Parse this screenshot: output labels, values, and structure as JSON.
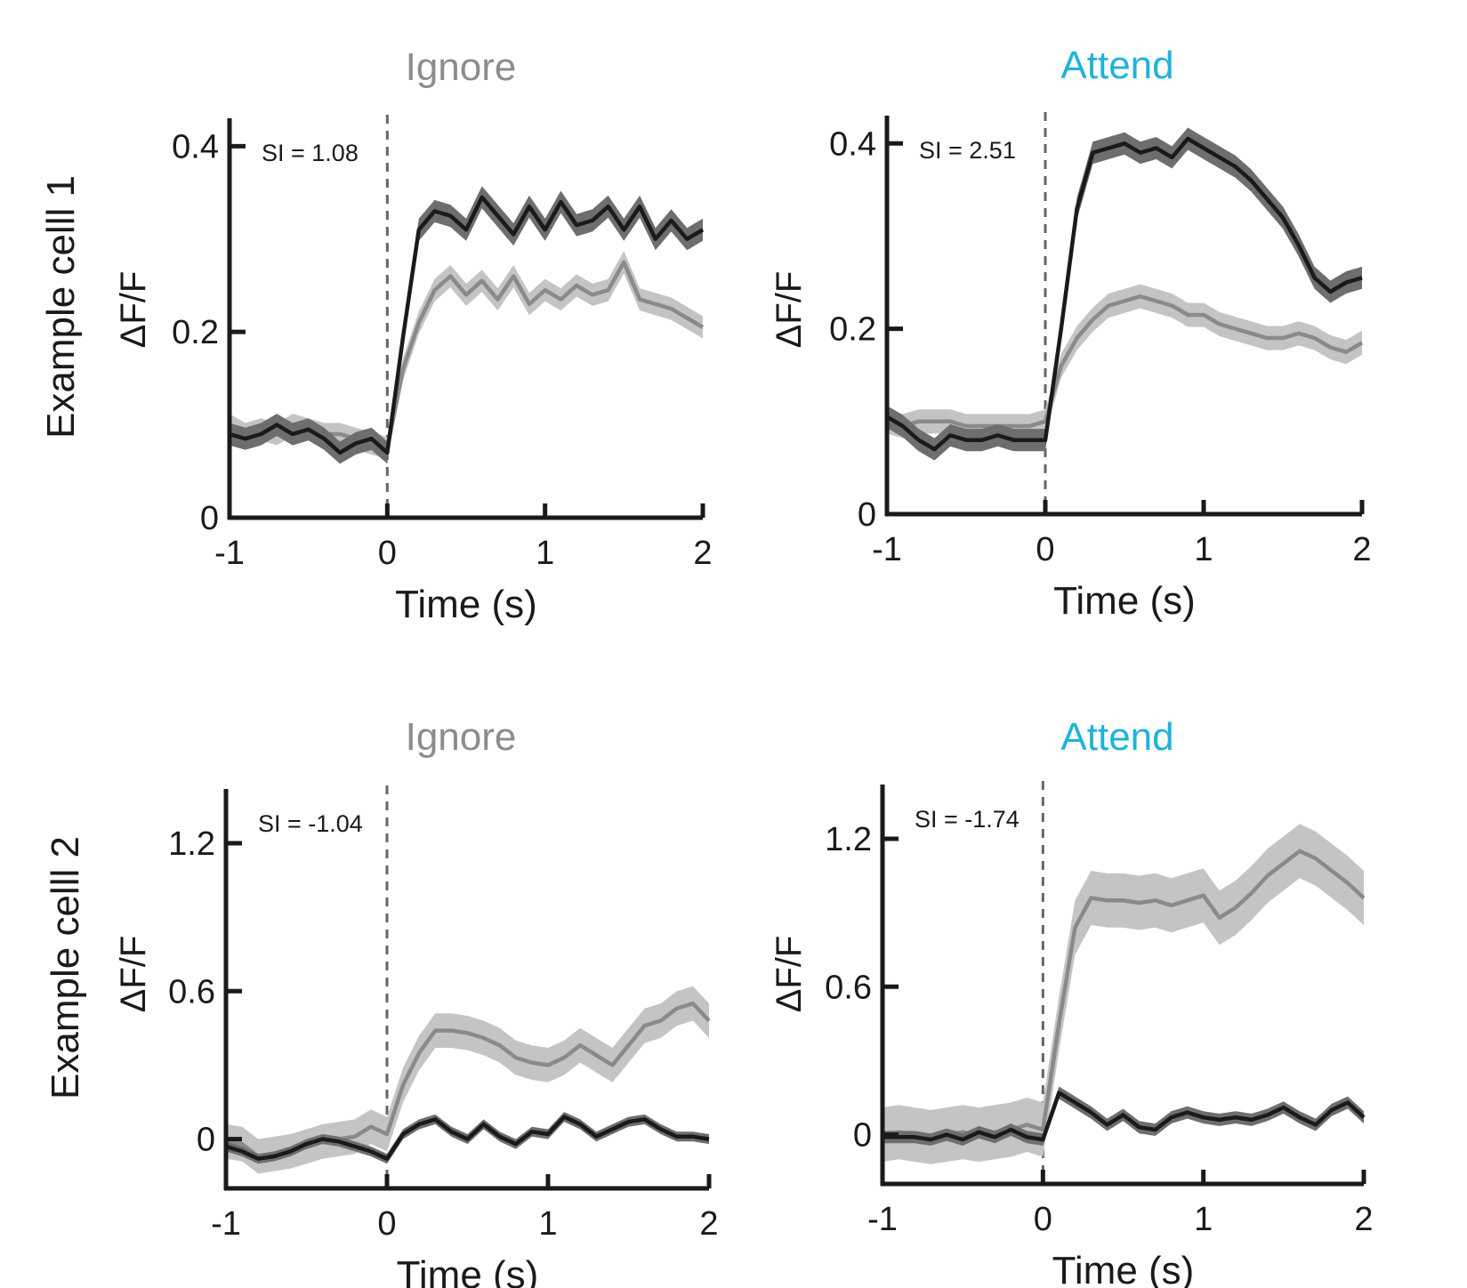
{
  "figure": {
    "row_labels": [
      "Example celll 1",
      "Example celll 2"
    ],
    "colors": {
      "ignore_title": "#8c8c8c",
      "attend_title": "#1fb3d6",
      "dark_line": "#1a1a1a",
      "dark_band": "#6e6e6e",
      "light_line": "#8a8a8a",
      "light_band": "#c4c4c4",
      "axis": "#1a1a1a",
      "stim_line": "#666666"
    }
  },
  "chart_data": [
    {
      "type": "line",
      "title": "Ignore",
      "row_label": "Example celll 1",
      "si_label": "SI = 1.08",
      "xlabel": "Time (s)",
      "ylabel": "ΔF/F",
      "xlim": [
        -1,
        2
      ],
      "ylim": [
        0,
        0.43
      ],
      "xticks": [
        "-1",
        "0",
        "1",
        "2"
      ],
      "yticks": [
        "0",
        "0.2",
        "0.4"
      ],
      "x": [
        -1.0,
        -0.9,
        -0.8,
        -0.7,
        -0.6,
        -0.5,
        -0.4,
        -0.3,
        -0.2,
        -0.1,
        0.0,
        0.1,
        0.2,
        0.3,
        0.4,
        0.5,
        0.6,
        0.7,
        0.8,
        0.9,
        1.0,
        1.1,
        1.2,
        1.3,
        1.4,
        1.5,
        1.6,
        1.7,
        1.8,
        1.9,
        2.0
      ],
      "series": [
        {
          "style": "light",
          "values": [
            0.1,
            0.09,
            0.095,
            0.09,
            0.1,
            0.095,
            0.09,
            0.09,
            0.085,
            0.08,
            0.075,
            0.16,
            0.21,
            0.245,
            0.26,
            0.24,
            0.255,
            0.235,
            0.26,
            0.23,
            0.245,
            0.235,
            0.25,
            0.24,
            0.245,
            0.275,
            0.235,
            0.23,
            0.225,
            0.215,
            0.205
          ],
          "band": 0.012
        },
        {
          "style": "dark",
          "values": [
            0.09,
            0.085,
            0.09,
            0.1,
            0.09,
            0.095,
            0.085,
            0.07,
            0.08,
            0.085,
            0.07,
            0.195,
            0.31,
            0.33,
            0.325,
            0.31,
            0.345,
            0.325,
            0.305,
            0.335,
            0.31,
            0.34,
            0.315,
            0.32,
            0.335,
            0.31,
            0.335,
            0.3,
            0.32,
            0.3,
            0.31
          ],
          "band": 0.012
        }
      ]
    },
    {
      "type": "line",
      "title": "Attend",
      "si_label": "SI = 2.51",
      "xlabel": "Time (s)",
      "ylabel": "ΔF/F",
      "xlim": [
        -1,
        2
      ],
      "ylim": [
        0,
        0.43
      ],
      "xticks": [
        "-1",
        "0",
        "1",
        "2"
      ],
      "yticks": [
        "0",
        "0.2",
        "0.4"
      ],
      "x": [
        -1.0,
        -0.9,
        -0.8,
        -0.7,
        -0.6,
        -0.5,
        -0.4,
        -0.3,
        -0.2,
        -0.1,
        0.0,
        0.1,
        0.2,
        0.3,
        0.4,
        0.5,
        0.6,
        0.7,
        0.8,
        0.9,
        1.0,
        1.1,
        1.2,
        1.3,
        1.4,
        1.5,
        1.6,
        1.7,
        1.8,
        1.9,
        2.0
      ],
      "series": [
        {
          "style": "light",
          "values": [
            0.1,
            0.095,
            0.1,
            0.1,
            0.1,
            0.095,
            0.095,
            0.095,
            0.095,
            0.095,
            0.1,
            0.16,
            0.19,
            0.21,
            0.225,
            0.23,
            0.235,
            0.23,
            0.225,
            0.215,
            0.215,
            0.205,
            0.2,
            0.195,
            0.19,
            0.19,
            0.195,
            0.19,
            0.18,
            0.175,
            0.185
          ],
          "band": 0.013
        },
        {
          "style": "dark",
          "values": [
            0.105,
            0.095,
            0.08,
            0.07,
            0.085,
            0.08,
            0.08,
            0.085,
            0.08,
            0.08,
            0.08,
            0.2,
            0.33,
            0.39,
            0.395,
            0.4,
            0.39,
            0.395,
            0.385,
            0.405,
            0.395,
            0.385,
            0.375,
            0.36,
            0.34,
            0.32,
            0.29,
            0.255,
            0.24,
            0.25,
            0.255
          ],
          "band": 0.012
        }
      ]
    },
    {
      "type": "line",
      "title": "Ignore",
      "row_label": "Example celll 2",
      "si_label": "SI = -1.04",
      "xlabel": "Time (s)",
      "ylabel": "ΔF/F",
      "xlim": [
        -1,
        2
      ],
      "ylim": [
        -0.2,
        1.42
      ],
      "xticks": [
        "-1",
        "0",
        "1",
        "2"
      ],
      "yticks": [
        "0",
        "0.6",
        "1.2"
      ],
      "x": [
        -1.0,
        -0.9,
        -0.8,
        -0.7,
        -0.6,
        -0.5,
        -0.4,
        -0.3,
        -0.2,
        -0.1,
        0.0,
        0.1,
        0.2,
        0.3,
        0.4,
        0.5,
        0.6,
        0.7,
        0.8,
        0.9,
        1.0,
        1.1,
        1.2,
        1.3,
        1.4,
        1.5,
        1.6,
        1.7,
        1.8,
        1.9,
        2.0
      ],
      "series": [
        {
          "style": "light",
          "values": [
            -0.01,
            -0.02,
            -0.07,
            -0.06,
            -0.05,
            -0.03,
            -0.01,
            0.0,
            0.01,
            0.05,
            0.02,
            0.22,
            0.35,
            0.44,
            0.44,
            0.43,
            0.41,
            0.38,
            0.33,
            0.31,
            0.3,
            0.33,
            0.38,
            0.34,
            0.3,
            0.38,
            0.46,
            0.48,
            0.53,
            0.55,
            0.48
          ],
          "band": 0.07
        },
        {
          "style": "dark",
          "values": [
            -0.03,
            -0.05,
            -0.08,
            -0.07,
            -0.05,
            -0.02,
            0.0,
            -0.01,
            -0.03,
            -0.05,
            -0.08,
            0.02,
            0.06,
            0.08,
            0.03,
            0.0,
            0.06,
            0.01,
            -0.02,
            0.03,
            0.02,
            0.09,
            0.06,
            0.01,
            0.04,
            0.07,
            0.08,
            0.04,
            0.01,
            0.01,
            0.0
          ],
          "band": 0.02
        }
      ]
    },
    {
      "type": "line",
      "title": "Attend",
      "si_label": "SI = -1.74",
      "xlabel": "Time (s)",
      "ylabel": "ΔF/F",
      "xlim": [
        -1,
        2
      ],
      "ylim": [
        -0.2,
        1.42
      ],
      "xticks": [
        "-1",
        "0",
        "1",
        "2"
      ],
      "yticks": [
        "0",
        "0.6",
        "1.2"
      ],
      "x": [
        -1.0,
        -0.9,
        -0.8,
        -0.7,
        -0.6,
        -0.5,
        -0.4,
        -0.3,
        -0.2,
        -0.1,
        0.0,
        0.1,
        0.2,
        0.3,
        0.4,
        0.5,
        0.6,
        0.7,
        0.8,
        0.9,
        1.0,
        1.1,
        1.2,
        1.3,
        1.4,
        1.5,
        1.6,
        1.7,
        1.8,
        1.9,
        2.0
      ],
      "series": [
        {
          "style": "light",
          "values": [
            0.0,
            0.01,
            0.0,
            -0.01,
            0.0,
            0.01,
            0.0,
            0.01,
            0.02,
            0.04,
            0.02,
            0.45,
            0.84,
            0.96,
            0.95,
            0.95,
            0.94,
            0.95,
            0.93,
            0.95,
            0.97,
            0.88,
            0.92,
            0.98,
            1.05,
            1.1,
            1.15,
            1.12,
            1.07,
            1.02,
            0.96
          ],
          "band": 0.11
        },
        {
          "style": "dark",
          "values": [
            -0.01,
            -0.01,
            -0.01,
            -0.02,
            0.0,
            -0.02,
            0.01,
            -0.01,
            0.02,
            -0.01,
            -0.02,
            0.17,
            0.13,
            0.09,
            0.04,
            0.08,
            0.03,
            0.02,
            0.07,
            0.09,
            0.07,
            0.06,
            0.07,
            0.06,
            0.08,
            0.11,
            0.07,
            0.04,
            0.1,
            0.13,
            0.07
          ],
          "band": 0.025
        }
      ]
    }
  ]
}
